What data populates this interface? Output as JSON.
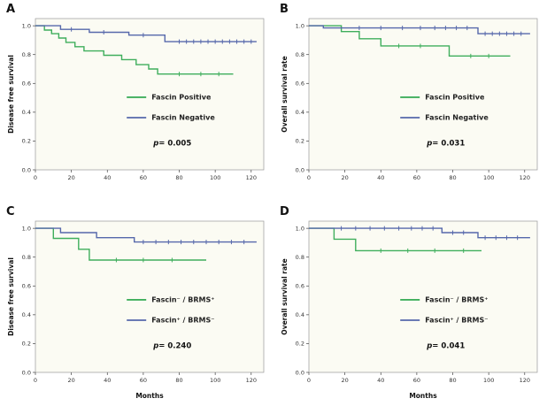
{
  "figure_title": "",
  "chart_data": [
    {
      "type": "line",
      "panel": "A",
      "ylabel": "Disease free survival",
      "xlabel": "",
      "x_ticks": [
        0,
        20,
        40,
        60,
        80,
        100,
        120
      ],
      "y_ticks": [
        "0.0",
        "0.2",
        "0.4",
        "0.6",
        "0.8",
        "1.0"
      ],
      "xlim": [
        0,
        127
      ],
      "ylim": [
        0,
        1.05
      ],
      "p_prefix": "p",
      "p_rest": "= 0.005",
      "series": [
        {
          "name": "Fascin Positive",
          "color": "#3fae5c",
          "points": [
            [
              0,
              1.0
            ],
            [
              5,
              0.97
            ],
            [
              9,
              0.945
            ],
            [
              13,
              0.915
            ],
            [
              17,
              0.885
            ],
            [
              22,
              0.855
            ],
            [
              27,
              0.825
            ],
            [
              38,
              0.795
            ],
            [
              48,
              0.765
            ],
            [
              56,
              0.73
            ],
            [
              63,
              0.7
            ],
            [
              68,
              0.665
            ]
          ],
          "end_x": 110,
          "censors": [
            [
              80,
              0.665
            ],
            [
              92,
              0.665
            ],
            [
              102,
              0.665
            ]
          ]
        },
        {
          "name": "Fascin Negative",
          "color": "#5668ab",
          "points": [
            [
              0,
              1.0
            ],
            [
              14,
              0.975
            ],
            [
              30,
              0.955
            ],
            [
              52,
              0.935
            ],
            [
              72,
              0.89
            ]
          ],
          "end_x": 123,
          "censors": [
            [
              20,
              0.975
            ],
            [
              38,
              0.955
            ],
            [
              60,
              0.935
            ],
            [
              80,
              0.89
            ],
            [
              84,
              0.89
            ],
            [
              88,
              0.89
            ],
            [
              92,
              0.89
            ],
            [
              96,
              0.89
            ],
            [
              100,
              0.89
            ],
            [
              104,
              0.89
            ],
            [
              108,
              0.89
            ],
            [
              112,
              0.89
            ],
            [
              116,
              0.89
            ],
            [
              120,
              0.89
            ]
          ]
        }
      ]
    },
    {
      "type": "line",
      "panel": "B",
      "ylabel": "Overall survival rate",
      "xlabel": "",
      "x_ticks": [
        0,
        20,
        40,
        60,
        80,
        100,
        120
      ],
      "y_ticks": [
        "0.0",
        "0.2",
        "0.4",
        "0.6",
        "0.8",
        "1.0"
      ],
      "xlim": [
        0,
        127
      ],
      "ylim": [
        0,
        1.05
      ],
      "p_prefix": "p",
      "p_rest": "= 0.031",
      "series": [
        {
          "name": "Fascin Positive",
          "color": "#3fae5c",
          "points": [
            [
              0,
              1.0
            ],
            [
              18,
              0.96
            ],
            [
              28,
              0.91
            ],
            [
              40,
              0.86
            ],
            [
              78,
              0.79
            ]
          ],
          "end_x": 112,
          "censors": [
            [
              50,
              0.86
            ],
            [
              62,
              0.86
            ],
            [
              90,
              0.79
            ],
            [
              100,
              0.79
            ]
          ]
        },
        {
          "name": "Fascin Negative",
          "color": "#5668ab",
          "points": [
            [
              0,
              1.0
            ],
            [
              8,
              0.985
            ],
            [
              94,
              0.945
            ]
          ],
          "end_x": 123,
          "censors": [
            [
              28,
              0.985
            ],
            [
              40,
              0.985
            ],
            [
              52,
              0.985
            ],
            [
              62,
              0.985
            ],
            [
              70,
              0.985
            ],
            [
              76,
              0.985
            ],
            [
              82,
              0.985
            ],
            [
              88,
              0.985
            ],
            [
              98,
              0.945
            ],
            [
              102,
              0.945
            ],
            [
              106,
              0.945
            ],
            [
              110,
              0.945
            ],
            [
              114,
              0.945
            ],
            [
              118,
              0.945
            ]
          ]
        }
      ]
    },
    {
      "type": "line",
      "panel": "C",
      "ylabel": "Disease free survival",
      "xlabel": "Months",
      "x_ticks": [
        0,
        20,
        40,
        60,
        80,
        100,
        120
      ],
      "y_ticks": [
        "0.0",
        "0.2",
        "0.4",
        "0.6",
        "0.8",
        "1.0"
      ],
      "xlim": [
        0,
        127
      ],
      "ylim": [
        0,
        1.05
      ],
      "p_prefix": "p",
      "p_rest": "= 0.240",
      "series": [
        {
          "name": "Fascin⁻ / BRMS⁺",
          "color": "#3fae5c",
          "points": [
            [
              0,
              1.0
            ],
            [
              10,
              0.93
            ],
            [
              24,
              0.855
            ],
            [
              30,
              0.78
            ]
          ],
          "end_x": 95,
          "censors": [
            [
              45,
              0.78
            ],
            [
              60,
              0.78
            ],
            [
              76,
              0.78
            ]
          ]
        },
        {
          "name": "Fascin⁺ / BRMS⁻",
          "color": "#5668ab",
          "points": [
            [
              0,
              1.0
            ],
            [
              14,
              0.97
            ],
            [
              34,
              0.935
            ],
            [
              55,
              0.905
            ]
          ],
          "end_x": 123,
          "censors": [
            [
              60,
              0.905
            ],
            [
              67,
              0.905
            ],
            [
              74,
              0.905
            ],
            [
              81,
              0.905
            ],
            [
              88,
              0.905
            ],
            [
              95,
              0.905
            ],
            [
              102,
              0.905
            ],
            [
              109,
              0.905
            ],
            [
              116,
              0.905
            ]
          ]
        }
      ]
    },
    {
      "type": "line",
      "panel": "D",
      "ylabel": "Overall survival rate",
      "xlabel": "Months",
      "x_ticks": [
        0,
        20,
        40,
        60,
        80,
        100,
        120
      ],
      "y_ticks": [
        "0.0",
        "0.2",
        "0.4",
        "0.6",
        "0.8",
        "1.0"
      ],
      "xlim": [
        0,
        127
      ],
      "ylim": [
        0,
        1.05
      ],
      "p_prefix": "p",
      "p_rest": "= 0.041",
      "series": [
        {
          "name": "Fascin⁻ / BRMS⁺",
          "color": "#3fae5c",
          "points": [
            [
              0,
              1.0
            ],
            [
              14,
              0.925
            ],
            [
              26,
              0.845
            ]
          ],
          "end_x": 96,
          "censors": [
            [
              40,
              0.845
            ],
            [
              55,
              0.845
            ],
            [
              70,
              0.845
            ],
            [
              86,
              0.845
            ]
          ]
        },
        {
          "name": "Fascin⁺ / BRMS⁻",
          "color": "#5668ab",
          "points": [
            [
              0,
              1.0
            ],
            [
              74,
              0.97
            ],
            [
              94,
              0.935
            ]
          ],
          "end_x": 123,
          "censors": [
            [
              18,
              1.0
            ],
            [
              26,
              1.0
            ],
            [
              34,
              1.0
            ],
            [
              42,
              1.0
            ],
            [
              50,
              1.0
            ],
            [
              57,
              1.0
            ],
            [
              63,
              1.0
            ],
            [
              69,
              1.0
            ],
            [
              80,
              0.97
            ],
            [
              86,
              0.97
            ],
            [
              98,
              0.935
            ],
            [
              104,
              0.935
            ],
            [
              110,
              0.935
            ],
            [
              116,
              0.935
            ]
          ]
        }
      ]
    }
  ],
  "style": {
    "plot_background": "#fbfbf3",
    "plot_border": "#999999",
    "green": "#3fae5c",
    "blue": "#5668ab"
  }
}
